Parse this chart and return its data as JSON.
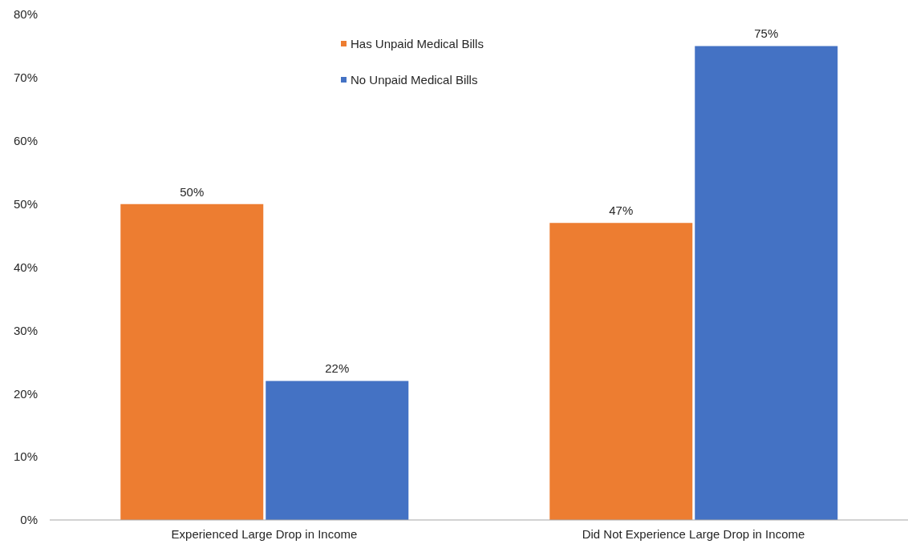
{
  "chart_data": {
    "type": "bar",
    "categories": [
      "Experienced Large Drop in Income",
      "Did Not Experience Large Drop in Income"
    ],
    "series": [
      {
        "name": "Has Unpaid Medical Bills",
        "color": "#ed7d31",
        "values": [
          50,
          47
        ],
        "value_labels": [
          "50%",
          "47%"
        ]
      },
      {
        "name": "No Unpaid Medical Bills",
        "color": "#4472c4",
        "values": [
          22,
          75
        ],
        "value_labels": [
          "22%",
          "75%"
        ]
      }
    ],
    "ylim": [
      0,
      80
    ],
    "yticks": [
      {
        "value": 0,
        "label": "0%"
      },
      {
        "value": 10,
        "label": "10%"
      },
      {
        "value": 20,
        "label": "20%"
      },
      {
        "value": 30,
        "label": "30%"
      },
      {
        "value": 40,
        "label": "40%"
      },
      {
        "value": 50,
        "label": "50%"
      },
      {
        "value": 60,
        "label": "60%"
      },
      {
        "value": 70,
        "label": "70%"
      },
      {
        "value": 80,
        "label": "80%"
      }
    ],
    "legend": "top"
  }
}
